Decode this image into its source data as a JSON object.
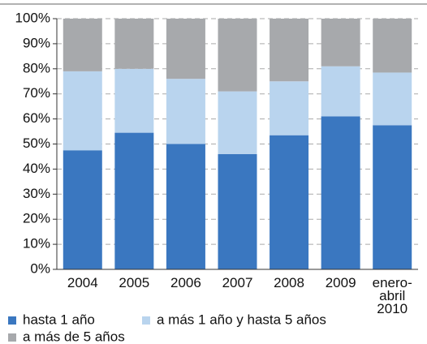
{
  "chart_data": {
    "type": "stacked_bar",
    "categories": [
      "2004",
      "2005",
      "2006",
      "2007",
      "2008",
      "2009",
      "enero-\nabril 2010"
    ],
    "series": [
      {
        "name": "hasta 1 año",
        "color": "#3a77c0",
        "values": [
          47.5,
          54.5,
          50,
          46,
          53.5,
          61,
          57.5
        ]
      },
      {
        "name": "a más 1 año y hasta 5 años",
        "color": "#b9d4ee",
        "values": [
          31.5,
          25.5,
          26,
          25,
          21.5,
          20,
          21
        ]
      },
      {
        "name": "a más de 5 años",
        "color": "#a7a9ac",
        "values": [
          21,
          20,
          24,
          29,
          25,
          19,
          21.5
        ]
      }
    ],
    "ylim": [
      0,
      100
    ],
    "yticks": [
      {
        "value": 0,
        "label": "0%"
      },
      {
        "value": 10,
        "label": "10%"
      },
      {
        "value": 20,
        "label": "20%"
      },
      {
        "value": 30,
        "label": "30%"
      },
      {
        "value": 40,
        "label": "40%"
      },
      {
        "value": 50,
        "label": "50%"
      },
      {
        "value": 60,
        "label": "60%"
      },
      {
        "value": 70,
        "label": "70%"
      },
      {
        "value": 80,
        "label": "80%"
      },
      {
        "value": 90,
        "label": "90%"
      },
      {
        "value": 100,
        "label": "100%"
      }
    ],
    "grid": true
  }
}
